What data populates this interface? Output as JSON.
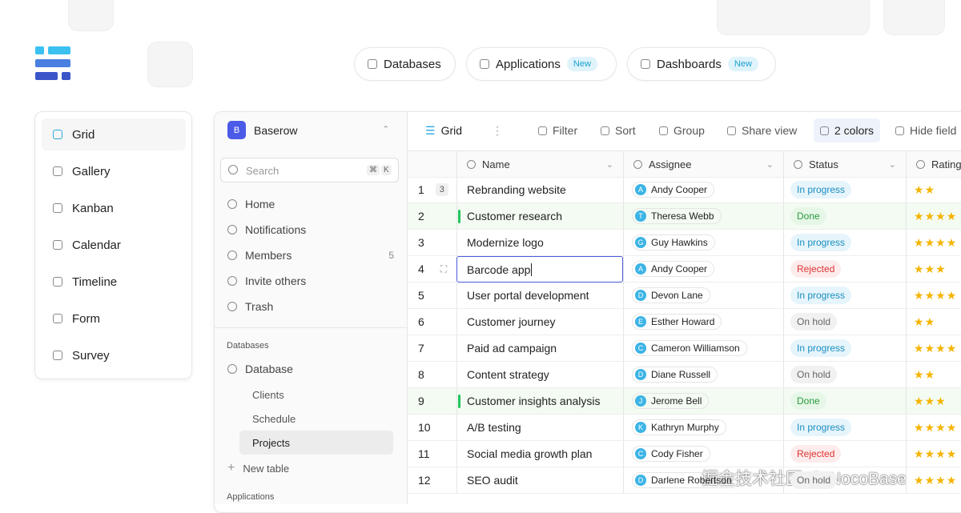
{
  "nav": [
    {
      "label": "Databases"
    },
    {
      "label": "Applications",
      "badge": "New"
    },
    {
      "label": "Dashboards",
      "badge": "New"
    }
  ],
  "views": [
    "Grid",
    "Gallery",
    "Kanban",
    "Calendar",
    "Timeline",
    "Form",
    "Survey"
  ],
  "workspace": {
    "initial": "B",
    "name": "Baserow"
  },
  "search": {
    "placeholder": "Search",
    "keys": [
      "⌘",
      "K"
    ]
  },
  "menu": [
    {
      "label": "Home"
    },
    {
      "label": "Notifications"
    },
    {
      "label": "Members",
      "count": 5
    },
    {
      "label": "Invite others"
    },
    {
      "label": "Trash"
    }
  ],
  "databases": {
    "heading": "Databases",
    "database": "Database",
    "tables": [
      "Clients",
      "Schedule",
      "Projects"
    ],
    "active_table": 2,
    "new_table": "New table"
  },
  "applications_heading": "Applications",
  "toolbar": {
    "view": "Grid",
    "items": [
      "Filter",
      "Sort",
      "Group",
      "Share view",
      "2 colors",
      "Hide field"
    ],
    "active_item": 4
  },
  "columns": [
    "Name",
    "Assignee",
    "Status",
    "Rating"
  ],
  "rows": [
    {
      "id": 1,
      "comments": 3,
      "name": "Rebranding website",
      "assignee": {
        "initial": "A",
        "name": "Andy Cooper"
      },
      "status": {
        "text": "In progress",
        "color": "blue"
      },
      "rating": 2
    },
    {
      "id": 2,
      "name": "Customer research",
      "assignee": {
        "initial": "T",
        "name": "Theresa Webb"
      },
      "status": {
        "text": "Done",
        "color": "green"
      },
      "rating": 4,
      "color": "#22c55e"
    },
    {
      "id": 3,
      "name": "Modernize logo",
      "assignee": {
        "initial": "G",
        "name": "Guy Hawkins"
      },
      "status": {
        "text": "In progress",
        "color": "blue"
      },
      "rating": 4
    },
    {
      "id": 4,
      "name": "Barcode app",
      "selected": true,
      "assignee": {
        "initial": "A",
        "name": "Andy Cooper"
      },
      "status": {
        "text": "Rejected",
        "color": "red"
      },
      "rating": 3
    },
    {
      "id": 5,
      "name": "User portal development",
      "assignee": {
        "initial": "D",
        "name": "Devon Lane"
      },
      "status": {
        "text": "In progress",
        "color": "blue"
      },
      "rating": 4
    },
    {
      "id": 6,
      "name": "Customer journey",
      "assignee": {
        "initial": "E",
        "name": "Esther Howard"
      },
      "status": {
        "text": "On hold",
        "color": "gray"
      },
      "rating": 2
    },
    {
      "id": 7,
      "name": "Paid ad campaign",
      "assignee": {
        "initial": "C",
        "name": "Cameron Williamson"
      },
      "status": {
        "text": "In progress",
        "color": "blue"
      },
      "rating": 4
    },
    {
      "id": 8,
      "name": "Content strategy",
      "assignee": {
        "initial": "D",
        "name": "Diane Russell"
      },
      "status": {
        "text": "On hold",
        "color": "gray"
      },
      "rating": 2
    },
    {
      "id": 9,
      "name": "Customer insights analysis",
      "assignee": {
        "initial": "J",
        "name": "Jerome Bell"
      },
      "status": {
        "text": "Done",
        "color": "green"
      },
      "rating": 3,
      "color": "#22c55e"
    },
    {
      "id": 10,
      "name": "A/B testing",
      "assignee": {
        "initial": "K",
        "name": "Kathryn Murphy"
      },
      "status": {
        "text": "In progress",
        "color": "blue"
      },
      "rating": 4
    },
    {
      "id": 11,
      "name": "Social media growth plan",
      "assignee": {
        "initial": "C",
        "name": "Cody Fisher"
      },
      "status": {
        "text": "Rejected",
        "color": "red"
      },
      "rating": 4
    },
    {
      "id": 12,
      "name": "SEO audit",
      "assignee": {
        "initial": "D",
        "name": "Darlene Robertson"
      },
      "status": {
        "text": "On hold",
        "color": "gray"
      },
      "rating": 4
    }
  ],
  "watermark": "掘金技术社区 @ NocoBase"
}
